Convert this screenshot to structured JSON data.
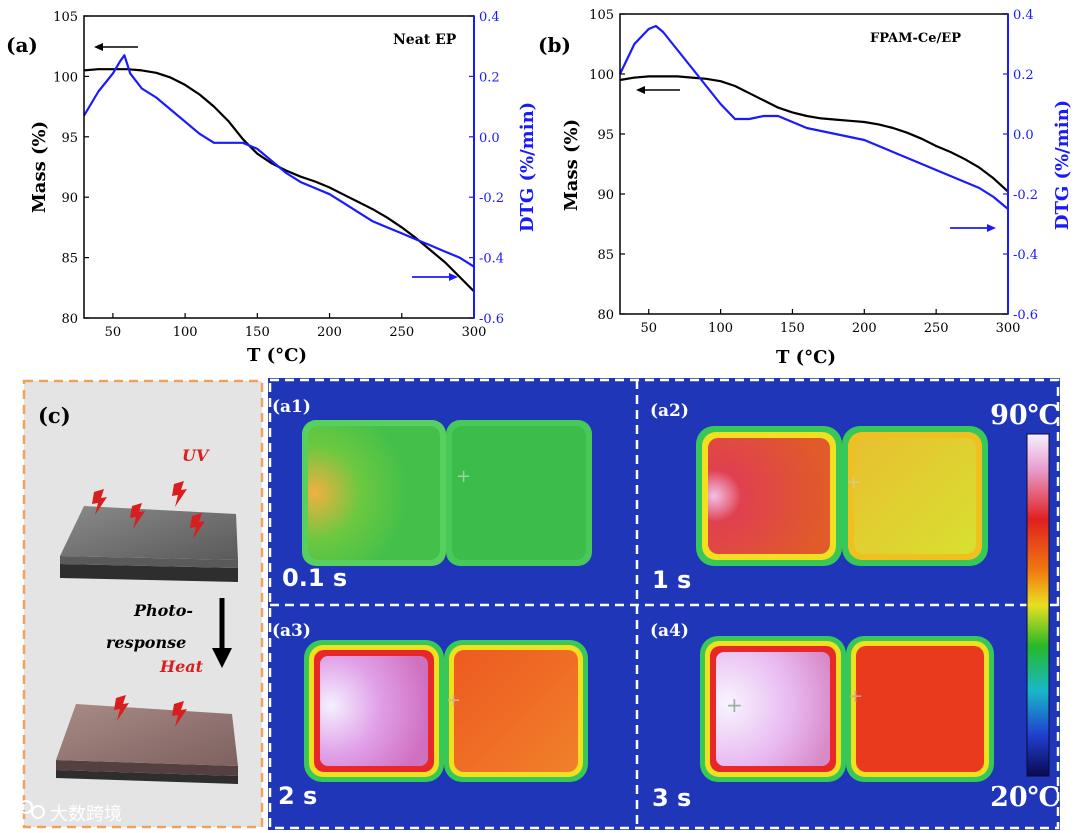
{
  "chart_data": [
    {
      "panel": "(a)",
      "type": "line",
      "title": "Neat EP",
      "xlabel": "T (°C)",
      "ylabel": "Mass (%)",
      "y2label": "DTG (%/min)",
      "xlim": [
        30,
        300
      ],
      "ylim": [
        80,
        105
      ],
      "y2lim": [
        -0.6,
        0.4
      ],
      "xticks": [
        "50",
        "100",
        "150",
        "200",
        "250",
        "300"
      ],
      "yticks": [
        "80",
        "85",
        "90",
        "95",
        "100",
        "105"
      ],
      "y2ticks": [
        "-0.6",
        "-0.4",
        "-0.2",
        "0.0",
        "0.2",
        "0.4"
      ],
      "series": [
        {
          "name": "Mass",
          "axis": "left",
          "color": "#000000",
          "x": [
            30,
            40,
            50,
            60,
            70,
            80,
            90,
            100,
            110,
            120,
            130,
            140,
            150,
            160,
            170,
            180,
            190,
            200,
            210,
            220,
            230,
            240,
            250,
            260,
            270,
            280,
            290,
            300
          ],
          "values": [
            100.5,
            100.6,
            100.6,
            100.6,
            100.5,
            100.3,
            99.9,
            99.3,
            98.5,
            97.5,
            96.3,
            94.8,
            93.6,
            92.8,
            92.2,
            91.7,
            91.3,
            90.8,
            90.2,
            89.6,
            89.0,
            88.3,
            87.5,
            86.6,
            85.6,
            84.6,
            83.4,
            82.2
          ]
        },
        {
          "name": "DTG",
          "axis": "right",
          "color": "#1a1aff",
          "x": [
            30,
            40,
            50,
            55,
            58,
            62,
            70,
            80,
            90,
            100,
            110,
            120,
            130,
            140,
            150,
            160,
            170,
            180,
            190,
            200,
            210,
            220,
            230,
            240,
            250,
            260,
            270,
            280,
            290,
            300
          ],
          "values": [
            0.07,
            0.15,
            0.21,
            0.25,
            0.27,
            0.21,
            0.16,
            0.13,
            0.09,
            0.05,
            0.01,
            -0.02,
            -0.02,
            -0.02,
            -0.04,
            -0.08,
            -0.12,
            -0.15,
            -0.17,
            -0.19,
            -0.22,
            -0.25,
            -0.28,
            -0.3,
            -0.32,
            -0.34,
            -0.36,
            -0.38,
            -0.4,
            -0.43
          ]
        }
      ],
      "annotations": [
        {
          "type": "arrow",
          "direction": "left",
          "target_axis": "left",
          "label": ""
        },
        {
          "type": "arrow",
          "direction": "right",
          "target_axis": "right",
          "label": ""
        }
      ]
    },
    {
      "panel": "(b)",
      "type": "line",
      "title": "FPAM-Ce/EP",
      "xlabel": "T (°C)",
      "ylabel": "Mass (%)",
      "y2label": "DTG (%/min)",
      "xlim": [
        30,
        300
      ],
      "ylim": [
        80,
        105
      ],
      "y2lim": [
        -0.6,
        0.4
      ],
      "xticks": [
        "50",
        "100",
        "150",
        "200",
        "250",
        "300"
      ],
      "yticks": [
        "80",
        "85",
        "90",
        "95",
        "100",
        "105"
      ],
      "y2ticks": [
        "-0.6",
        "-0.4",
        "-0.2",
        "0.0",
        "0.2",
        "0.4"
      ],
      "series": [
        {
          "name": "Mass",
          "axis": "left",
          "color": "#000000",
          "x": [
            30,
            40,
            50,
            60,
            70,
            80,
            90,
            100,
            110,
            120,
            130,
            140,
            150,
            160,
            170,
            180,
            190,
            200,
            210,
            220,
            230,
            240,
            250,
            260,
            270,
            280,
            290,
            300
          ],
          "values": [
            99.5,
            99.7,
            99.8,
            99.8,
            99.8,
            99.7,
            99.6,
            99.4,
            99.0,
            98.4,
            97.8,
            97.2,
            96.8,
            96.5,
            96.3,
            96.2,
            96.1,
            96.0,
            95.8,
            95.5,
            95.1,
            94.6,
            94.0,
            93.5,
            92.9,
            92.2,
            91.3,
            90.2
          ]
        },
        {
          "name": "DTG",
          "axis": "right",
          "color": "#1a1aff",
          "x": [
            30,
            40,
            50,
            55,
            60,
            70,
            80,
            90,
            100,
            110,
            120,
            130,
            140,
            150,
            160,
            170,
            180,
            190,
            200,
            210,
            220,
            230,
            240,
            250,
            260,
            270,
            280,
            290,
            300
          ],
          "values": [
            0.2,
            0.3,
            0.35,
            0.36,
            0.34,
            0.28,
            0.22,
            0.16,
            0.1,
            0.05,
            0.05,
            0.06,
            0.06,
            0.04,
            0.02,
            0.01,
            0.0,
            -0.01,
            -0.02,
            -0.04,
            -0.06,
            -0.08,
            -0.1,
            -0.12,
            -0.14,
            -0.16,
            -0.18,
            -0.21,
            -0.25
          ]
        }
      ],
      "annotations": [
        {
          "type": "arrow",
          "direction": "left",
          "target_axis": "left",
          "label": ""
        },
        {
          "type": "arrow",
          "direction": "right",
          "target_axis": "right",
          "label": ""
        }
      ]
    }
  ],
  "panel_c": {
    "label": "(c)",
    "uv_label": "UV",
    "photo_label_line1": "Photo-",
    "photo_label_line2": "response",
    "heat_label": "Heat"
  },
  "thermal": {
    "frames": [
      {
        "id": "(a1)",
        "time": "0.1 s"
      },
      {
        "id": "(a2)",
        "time": "1 s"
      },
      {
        "id": "(a3)",
        "time": "2 s"
      },
      {
        "id": "(a4)",
        "time": "3 s"
      }
    ],
    "scale_max": "90℃",
    "scale_min": "20℃"
  },
  "watermark": "大数跨境",
  "colors": {
    "mass": "#000000",
    "dtg": "#1a1aff",
    "thermal_bg": "#1f36b9",
    "panel_border": "#f0a15a",
    "uv_red": "#d81e1e"
  }
}
